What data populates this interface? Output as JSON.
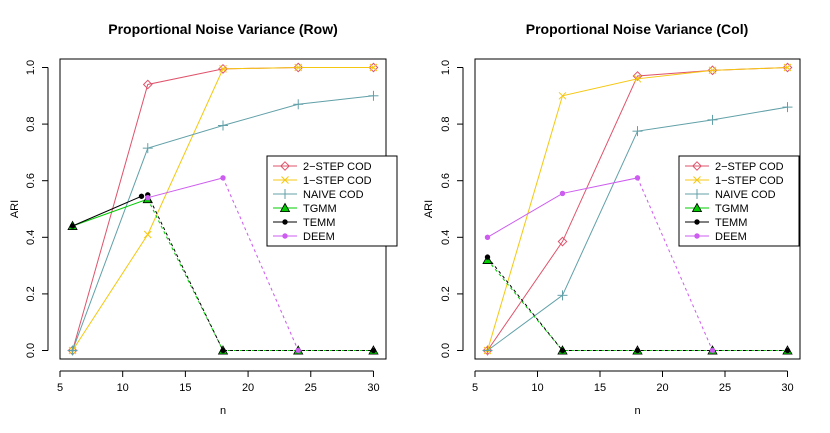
{
  "chart_data": [
    {
      "type": "line",
      "title": "Proportional Noise Variance (Row)",
      "xlabel": "n",
      "ylabel": "ARI",
      "xlim": [
        5,
        31
      ],
      "ylim": [
        -0.03,
        1.03
      ],
      "xticks": [
        5,
        10,
        15,
        20,
        25,
        30
      ],
      "yticks": [
        0.0,
        0.2,
        0.4,
        0.6,
        0.8,
        1.0
      ],
      "xtick_labels": [
        "5",
        "10",
        "15",
        "20",
        "25",
        "30"
      ],
      "ytick_labels": [
        "0.0",
        "0.2",
        "0.4",
        "0.6",
        "0.8",
        "1.0"
      ],
      "legend_position": "right-middle",
      "legend": [
        "2−STEP COD",
        "1−STEP COD",
        "NAIVE COD",
        "TGMM",
        "TEMM",
        "DEEM"
      ],
      "series": [
        {
          "name": "2−STEP COD",
          "color": "#DF536B",
          "marker": "diamond",
          "segments": [
            {
              "x": [
                6,
                12,
                18,
                24,
                30
              ],
              "y": [
                0.0,
                0.94,
                0.995,
                1.0,
                1.0
              ],
              "dashed": false
            }
          ]
        },
        {
          "name": "1−STEP COD",
          "color": "#F5C710",
          "marker": "x",
          "segments": [
            {
              "x": [
                6,
                12,
                18,
                24,
                30
              ],
              "y": [
                0.0,
                0.41,
                0.995,
                1.0,
                1.0
              ],
              "dashed": false
            }
          ]
        },
        {
          "name": "NAIVE COD",
          "color": "#61A0A8",
          "marker": "plus",
          "segments": [
            {
              "x": [
                6,
                12,
                18,
                24,
                30
              ],
              "y": [
                0.0,
                0.715,
                0.795,
                0.87,
                0.9
              ],
              "dashed": false
            }
          ]
        },
        {
          "name": "TGMM",
          "color": "#00CC00",
          "marker": "triangle",
          "segments": [
            {
              "x": [
                6,
                12
              ],
              "y": [
                0.44,
                0.535
              ],
              "dashed": false
            },
            {
              "x": [
                12,
                18,
                24,
                30
              ],
              "y": [
                0.535,
                0.0,
                0.0,
                0.0
              ],
              "dashed": true
            }
          ]
        },
        {
          "name": "TEMM",
          "color": "#000000",
          "marker": "dot",
          "segments": [
            {
              "x": [
                6,
                11.5
              ],
              "y": [
                0.44,
                0.545
              ],
              "dashed": false
            },
            {
              "x": [
                12,
                18,
                24,
                30
              ],
              "y": [
                0.55,
                0.0,
                0.0,
                0.0
              ],
              "dashed": true
            }
          ]
        },
        {
          "name": "DEEM",
          "color": "#CD5CF0",
          "marker": "dot",
          "segments": [
            {
              "x": [
                12,
                18
              ],
              "y": [
                0.54,
                0.61
              ],
              "dashed": false
            },
            {
              "x": [
                18,
                24
              ],
              "y": [
                0.61,
                0.0
              ],
              "dashed": true
            }
          ]
        }
      ]
    },
    {
      "type": "line",
      "title": "Proportional Noise Variance (Col)",
      "xlabel": "n",
      "ylabel": "ARI",
      "xlim": [
        5,
        31
      ],
      "ylim": [
        -0.03,
        1.03
      ],
      "xticks": [
        5,
        10,
        15,
        20,
        25,
        30
      ],
      "yticks": [
        0.0,
        0.2,
        0.4,
        0.6,
        0.8,
        1.0
      ],
      "xtick_labels": [
        "5",
        "10",
        "15",
        "20",
        "25",
        "30"
      ],
      "ytick_labels": [
        "0.0",
        "0.2",
        "0.4",
        "0.6",
        "0.8",
        "1.0"
      ],
      "legend_position": "right-middle",
      "legend": [
        "2−STEP COD",
        "1−STEP COD",
        "NAIVE COD",
        "TGMM",
        "TEMM",
        "DEEM"
      ],
      "series": [
        {
          "name": "2−STEP COD",
          "color": "#DF536B",
          "marker": "diamond",
          "segments": [
            {
              "x": [
                6,
                12,
                18,
                24,
                30
              ],
              "y": [
                0.0,
                0.385,
                0.97,
                0.99,
                1.0
              ],
              "dashed": false
            }
          ]
        },
        {
          "name": "1−STEP COD",
          "color": "#F5C710",
          "marker": "x",
          "segments": [
            {
              "x": [
                6,
                12,
                18,
                24,
                30
              ],
              "y": [
                0.0,
                0.9,
                0.96,
                0.99,
                1.0
              ],
              "dashed": false
            }
          ]
        },
        {
          "name": "NAIVE COD",
          "color": "#61A0A8",
          "marker": "plus",
          "segments": [
            {
              "x": [
                6,
                12,
                18,
                24,
                30
              ],
              "y": [
                0.0,
                0.195,
                0.775,
                0.815,
                0.86
              ],
              "dashed": false
            }
          ]
        },
        {
          "name": "TGMM",
          "color": "#00CC00",
          "marker": "triangle",
          "segments": [
            {
              "x": [
                6,
                12,
                18,
                24,
                30
              ],
              "y": [
                0.32,
                0.0,
                0.0,
                0.0,
                0.0
              ],
              "dashed": true
            }
          ]
        },
        {
          "name": "TEMM",
          "color": "#000000",
          "marker": "dot",
          "segments": [
            {
              "x": [
                6,
                12,
                18,
                24,
                30
              ],
              "y": [
                0.33,
                0.0,
                0.0,
                0.0,
                0.0
              ],
              "dashed": true
            }
          ]
        },
        {
          "name": "DEEM",
          "color": "#CD5CF0",
          "marker": "dot",
          "segments": [
            {
              "x": [
                6,
                12,
                18
              ],
              "y": [
                0.4,
                0.555,
                0.61
              ],
              "dashed": false
            },
            {
              "x": [
                18,
                24
              ],
              "y": [
                0.61,
                0.0
              ],
              "dashed": true
            }
          ]
        }
      ]
    }
  ]
}
